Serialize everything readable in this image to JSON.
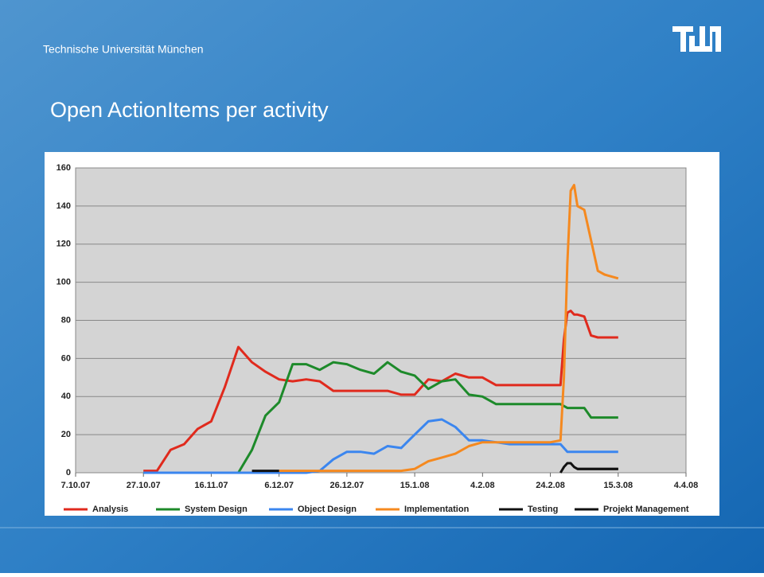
{
  "slide": {
    "header": "Technische Universität München",
    "title": "Open ActionItems per activity"
  },
  "chart_data": {
    "type": "line",
    "x": [
      "2007-10-27",
      "2007-10-31",
      "2007-11-04",
      "2007-11-08",
      "2007-11-12",
      "2007-11-16",
      "2007-11-20",
      "2007-11-24",
      "2007-11-28",
      "2007-12-02",
      "2007-12-06",
      "2007-12-10",
      "2007-12-14",
      "2007-12-18",
      "2007-12-22",
      "2007-12-26",
      "2007-12-30",
      "2008-01-03",
      "2008-01-07",
      "2008-01-11",
      "2008-01-15",
      "2008-01-19",
      "2008-01-23",
      "2008-01-27",
      "2008-01-31",
      "2008-02-04",
      "2008-02-08",
      "2008-02-12",
      "2008-02-16",
      "2008-02-20",
      "2008-02-24",
      "2008-02-27",
      "2008-02-28",
      "2008-02-29",
      "2008-03-01",
      "2008-03-02",
      "2008-03-03",
      "2008-03-05",
      "2008-03-07",
      "2008-03-09",
      "2008-03-11",
      "2008-03-15"
    ],
    "series": [
      {
        "name": "Analysis",
        "color": "#e02a1d",
        "values": [
          1,
          1,
          12,
          15,
          23,
          27,
          45,
          66,
          58,
          53,
          49,
          48,
          49,
          48,
          43,
          43,
          43,
          43,
          43,
          41,
          41,
          49,
          48,
          52,
          50,
          50,
          46,
          46,
          46,
          46,
          46,
          46,
          70,
          84,
          85,
          83,
          83,
          82,
          72,
          71,
          71,
          71
        ]
      },
      {
        "name": "System Design",
        "color": "#1d8a2a",
        "values": [
          0,
          0,
          0,
          0,
          0,
          0,
          0,
          0,
          12,
          30,
          37,
          57,
          57,
          54,
          58,
          57,
          54,
          52,
          58,
          53,
          51,
          44,
          48,
          49,
          41,
          40,
          36,
          36,
          36,
          36,
          36,
          36,
          35,
          34,
          34,
          34,
          34,
          34,
          29,
          29,
          29,
          29
        ]
      },
      {
        "name": "Object Design",
        "color": "#3b86ef",
        "values": [
          0,
          0,
          0,
          0,
          0,
          0,
          0,
          0,
          0,
          0,
          0,
          0,
          0,
          1,
          7,
          11,
          11,
          10,
          14,
          13,
          20,
          27,
          28,
          24,
          17,
          17,
          16,
          15,
          15,
          15,
          15,
          15,
          13,
          11,
          11,
          11,
          11,
          11,
          11,
          11,
          11,
          11
        ]
      },
      {
        "name": "Implementation",
        "color": "#f5891f",
        "values": [
          null,
          null,
          null,
          null,
          null,
          null,
          null,
          null,
          null,
          null,
          1,
          1,
          1,
          1,
          1,
          1,
          1,
          1,
          1,
          1,
          2,
          6,
          8,
          10,
          14,
          16,
          16,
          16,
          16,
          16,
          16,
          17,
          50,
          110,
          148,
          151,
          140,
          138,
          122,
          106,
          104,
          102
        ]
      },
      {
        "name": "Testing",
        "color": "#111111",
        "values": [
          null,
          null,
          null,
          null,
          null,
          null,
          null,
          null,
          1,
          1,
          1,
          null,
          null,
          null,
          null,
          null,
          null,
          null,
          null,
          null,
          null,
          null,
          null,
          null,
          null,
          null,
          null,
          null,
          null,
          null,
          null,
          0,
          3,
          5,
          5,
          3,
          2,
          2,
          2,
          2,
          2,
          2
        ]
      },
      {
        "name": "Projekt Management",
        "color": "#111111",
        "values": [
          null,
          null,
          null,
          null,
          null,
          null,
          null,
          null,
          null,
          null,
          null,
          null,
          null,
          null,
          null,
          null,
          null,
          null,
          null,
          null,
          null,
          null,
          null,
          null,
          null,
          null,
          null,
          null,
          null,
          null,
          null,
          null,
          null,
          null,
          null,
          null,
          2,
          2,
          2,
          2,
          2,
          2
        ]
      }
    ],
    "xlim": [
      "2007-10-07",
      "2008-04-04"
    ],
    "xticks": [
      {
        "value": "2007-10-07",
        "label": "7.10.07"
      },
      {
        "value": "2007-10-27",
        "label": "27.10.07"
      },
      {
        "value": "2007-11-16",
        "label": "16.11.07"
      },
      {
        "value": "2007-12-06",
        "label": "6.12.07"
      },
      {
        "value": "2007-12-26",
        "label": "26.12.07"
      },
      {
        "value": "2008-01-15",
        "label": "15.1.08"
      },
      {
        "value": "2008-02-04",
        "label": "4.2.08"
      },
      {
        "value": "2008-02-24",
        "label": "24.2.08"
      },
      {
        "value": "2008-03-15",
        "label": "15.3.08"
      },
      {
        "value": "2008-04-04",
        "label": "4.4.08"
      }
    ],
    "ylim": [
      0,
      160
    ],
    "yticks": [
      0,
      20,
      40,
      60,
      80,
      100,
      120,
      140,
      160
    ],
    "grid": true,
    "legend": "bottom"
  }
}
